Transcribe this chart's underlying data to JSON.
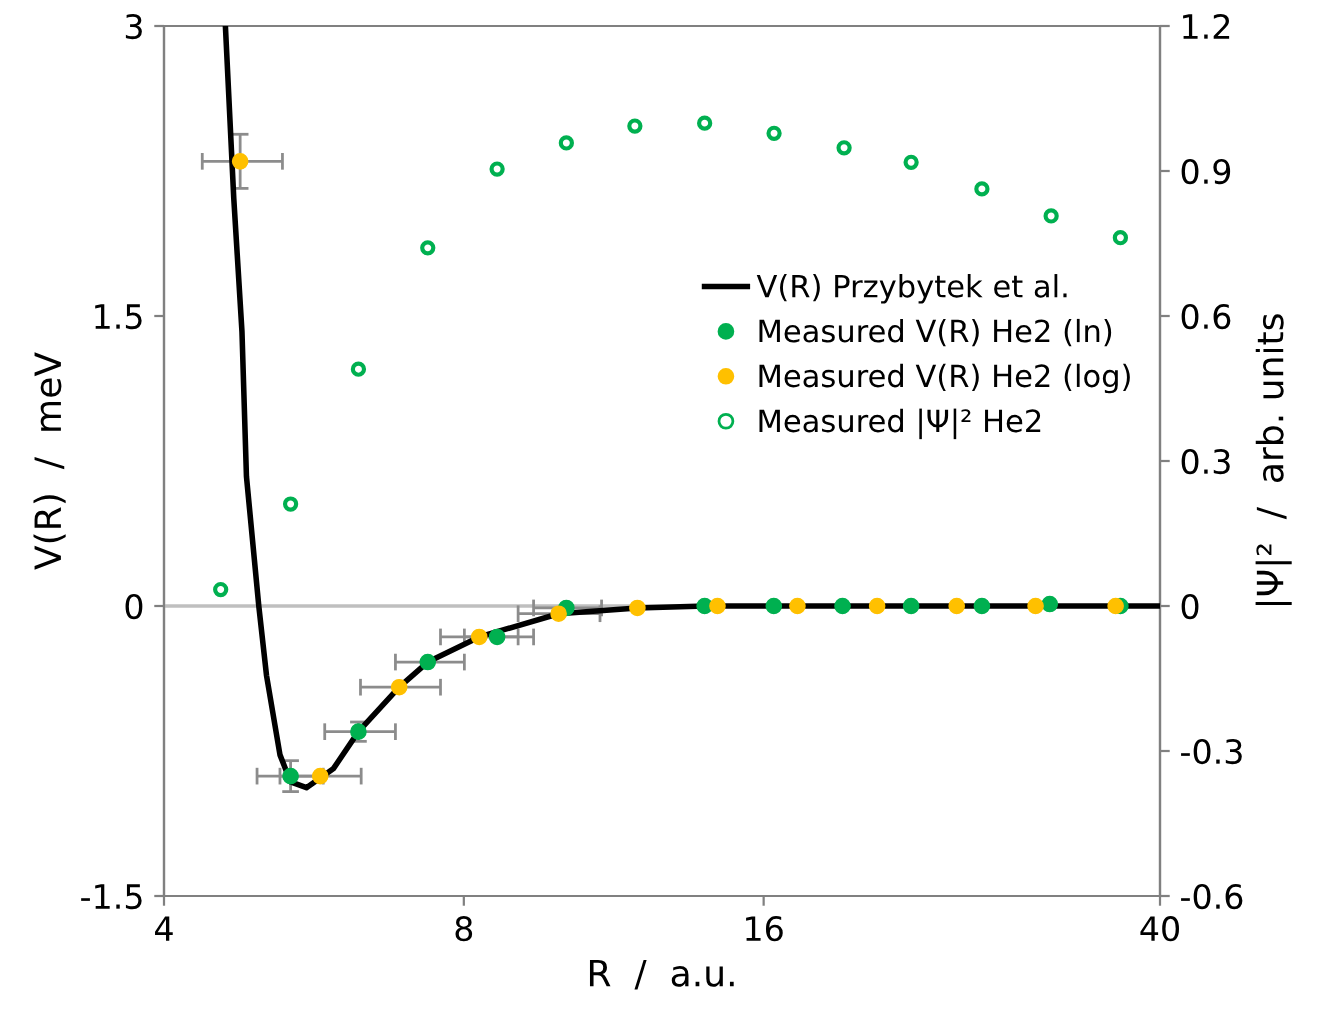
{
  "chart_data": {
    "type": "scatter",
    "xlabel": "R  /  a.u.",
    "ylabel": "V(R)  /  meV",
    "y2label": "|Ψ|²  /  arb. units",
    "log": "x",
    "xlim": [
      4,
      40
    ],
    "xticks": [
      4,
      8,
      16,
      40
    ],
    "ylim": [
      -1.5,
      3
    ],
    "yticks": [
      -1.5,
      0,
      1.5,
      3
    ],
    "y2lim": [
      -0.6,
      1.2
    ],
    "y2ticks": [
      -0.6,
      -0.3,
      0,
      0.3,
      0.6,
      0.9,
      1.2
    ],
    "legend": "right",
    "grid": false,
    "ref_lines": [
      {
        "axis": "y",
        "value": 0,
        "color": "#bfbfbf"
      }
    ],
    "series": [
      {
        "name": "V(R) Przybytek et al.",
        "type": "line",
        "color": "#000000",
        "marker": "none",
        "line_style": "solid",
        "x": [
          4.61,
          4.7,
          4.79,
          4.84,
          4.98,
          5.07,
          5.23,
          5.36,
          5.56,
          5.92,
          6.27,
          6.89,
          7.36,
          8.29,
          9.96,
          11.95,
          14,
          40
        ],
        "values": [
          3.0,
          2.11,
          1.42,
          0.67,
          0,
          -0.36,
          -0.77,
          -0.91,
          -0.94,
          -0.84,
          -0.65,
          -0.42,
          -0.29,
          -0.16,
          -0.04,
          -0.01,
          0,
          0
        ]
      },
      {
        "name": "Measured V(R) He2 (ln)",
        "color": "#00b050",
        "marker": "circle",
        "x": [
          5.36,
          6.27,
          7.36,
          8.64,
          10.14,
          11.9,
          13.96,
          16.38,
          19.2,
          22.5,
          26.5,
          31.0,
          36.5
        ],
        "values": [
          -0.88,
          -0.65,
          -0.29,
          -0.16,
          -0.01,
          null,
          0,
          0,
          0,
          0,
          0,
          0.01,
          0
        ],
        "errors": [
          0.08,
          0.05,
          null,
          null,
          null,
          null,
          null,
          null,
          null,
          null,
          null,
          null,
          null
        ],
        "xerrors": [
          [
            4.96,
            5.78
          ],
          [
            5.8,
            6.83
          ],
          [
            6.83,
            8.01
          ],
          [
            8.01,
            9.4
          ],
          [
            9.4,
            11.0
          ],
          null,
          null,
          null,
          null,
          null,
          null,
          null,
          null
        ]
      },
      {
        "name": "Measured V(R) He2 (log)",
        "color": "#ffc000",
        "marker": "circle",
        "x": [
          4.77,
          5.74,
          6.89,
          8.29,
          9.96,
          11.95,
          14.38,
          17.3,
          20.8,
          25.0,
          30.0,
          36.1
        ],
        "values": [
          2.3,
          -0.88,
          -0.42,
          -0.16,
          -0.04,
          -0.01,
          0,
          0,
          0,
          0,
          0,
          0
        ],
        "errors": [
          0.14,
          null,
          null,
          null,
          null,
          null,
          null,
          null,
          null,
          null,
          null,
          null
        ],
        "xerrors": [
          [
            4.37,
            5.26
          ],
          [
            5.23,
            6.31
          ],
          [
            6.3,
            7.58
          ],
          [
            7.58,
            9.07
          ],
          [
            9.07,
            10.96
          ],
          null,
          null,
          null,
          null,
          null,
          null,
          null
        ]
      },
      {
        "name": "Measured |Ψ|² He2",
        "axis": "y2",
        "color": "#00b050",
        "marker": "circle",
        "x": [
          4.56,
          5.36,
          6.27,
          7.36,
          8.64,
          10.14,
          11.88,
          13.96,
          16.39,
          19.27,
          22.5,
          26.5,
          31.1,
          36.5
        ],
        "values": [
          0.034,
          0.211,
          0.49,
          0.741,
          0.904,
          0.958,
          0.993,
          0.999,
          0.978,
          0.948,
          0.918,
          0.863,
          0.807,
          0.762
        ]
      }
    ]
  }
}
